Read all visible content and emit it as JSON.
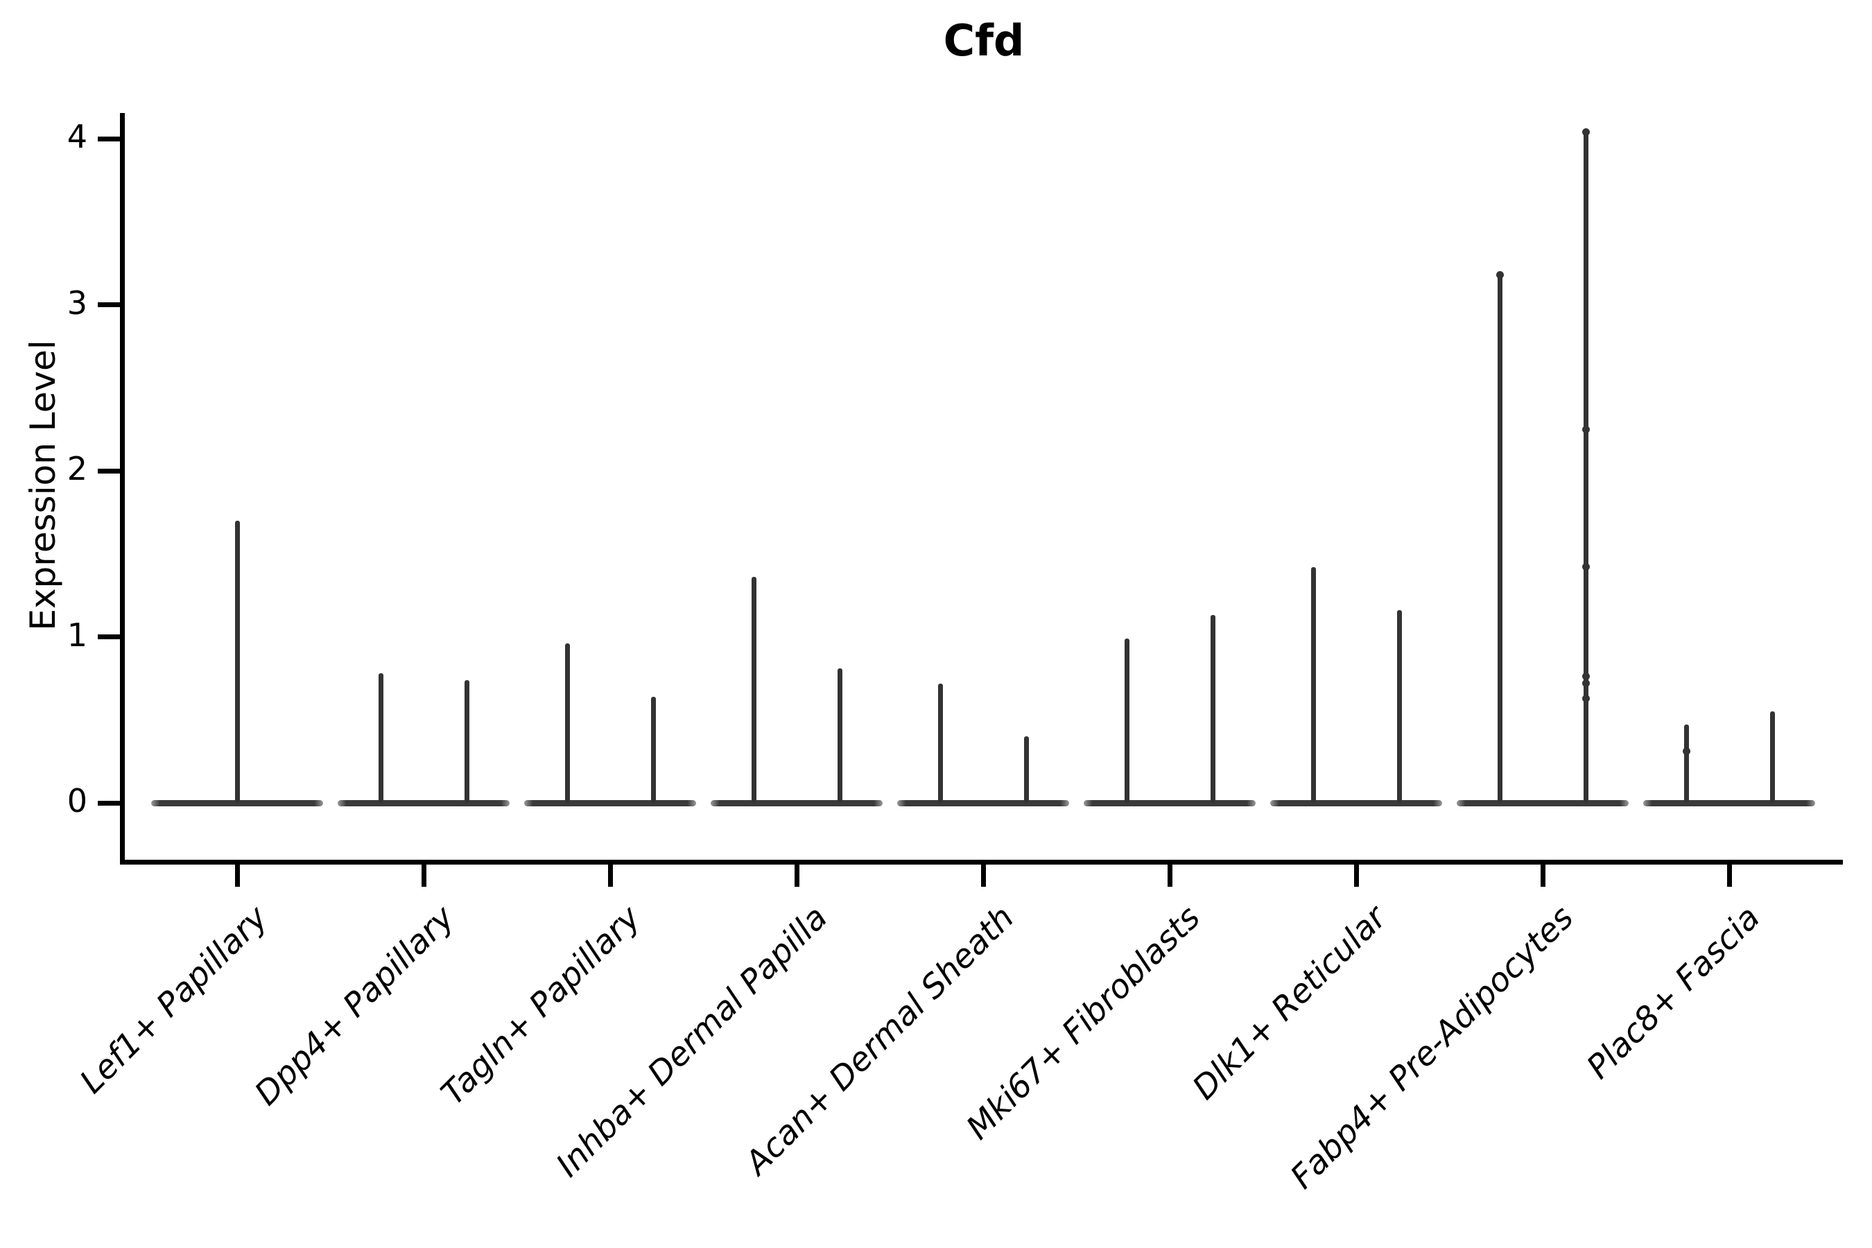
{
  "title": "Cfd",
  "y_axis": {
    "label": "Expression Level",
    "tick_labels": [
      "0",
      "1",
      "2",
      "3",
      "4"
    ]
  },
  "chart_data": {
    "type": "violin",
    "title": "Cfd",
    "xlabel": "",
    "ylabel": "Expression Level",
    "ylim": [
      0,
      4.2
    ],
    "yticks": [
      0,
      1,
      2,
      3,
      4
    ],
    "grid": false,
    "legend": "none",
    "categories": [
      "Lef1+ Papillary",
      "Dpp4+ Papillary",
      "Tagln+ Papillary",
      "Inhba+ Dermal Papilla",
      "Acan+ Dermal Sheath",
      "Mki67+ Fibroblasts",
      "Dlk1+ Reticular",
      "Fabp4+ Pre-Adipocytes",
      "Plac8+ Fascia"
    ],
    "violins": [
      {
        "category": "Lef1+ Papillary",
        "spikes": [
          {
            "pos": "center",
            "max": 1.7,
            "points": []
          }
        ]
      },
      {
        "category": "Dpp4+ Papillary",
        "spikes": [
          {
            "pos": "left",
            "max": 0.78,
            "points": []
          },
          {
            "pos": "right",
            "max": 0.74,
            "points": []
          }
        ]
      },
      {
        "category": "Tagln+ Papillary",
        "spikes": [
          {
            "pos": "left",
            "max": 0.96,
            "points": []
          },
          {
            "pos": "right",
            "max": 0.64,
            "points": []
          }
        ]
      },
      {
        "category": "Inhba+ Dermal Papilla",
        "spikes": [
          {
            "pos": "left",
            "max": 1.36,
            "points": []
          },
          {
            "pos": "right",
            "max": 0.81,
            "points": []
          }
        ]
      },
      {
        "category": "Acan+ Dermal Sheath",
        "spikes": [
          {
            "pos": "left",
            "max": 0.72,
            "points": []
          },
          {
            "pos": "right",
            "max": 0.4,
            "points": []
          }
        ]
      },
      {
        "category": "Mki67+ Fibroblasts",
        "spikes": [
          {
            "pos": "left",
            "max": 0.99,
            "points": []
          },
          {
            "pos": "right",
            "max": 1.13,
            "points": []
          }
        ]
      },
      {
        "category": "Dlk1+ Reticular",
        "spikes": [
          {
            "pos": "left",
            "max": 1.42,
            "points": []
          },
          {
            "pos": "right",
            "max": 1.16,
            "points": []
          }
        ]
      },
      {
        "category": "Fabp4+ Pre-Adipocytes",
        "spikes": [
          {
            "pos": "left",
            "max": 3.18,
            "points": [
              3.18
            ]
          },
          {
            "pos": "right",
            "max": 4.04,
            "points": [
              4.04,
              2.25,
              1.42,
              0.76,
              0.72,
              0.63
            ]
          }
        ]
      },
      {
        "category": "Plac8+ Fascia",
        "spikes": [
          {
            "pos": "left",
            "max": 0.47,
            "points": [
              0.31
            ]
          },
          {
            "pos": "right",
            "max": 0.55,
            "points": []
          }
        ]
      }
    ],
    "colors": {
      "violin_line": "#333333",
      "baseline": "#3a3a3a",
      "baseline_tip": "#9a9a9a",
      "axis": "#000000",
      "text": "#000000",
      "background": "#ffffff"
    }
  }
}
